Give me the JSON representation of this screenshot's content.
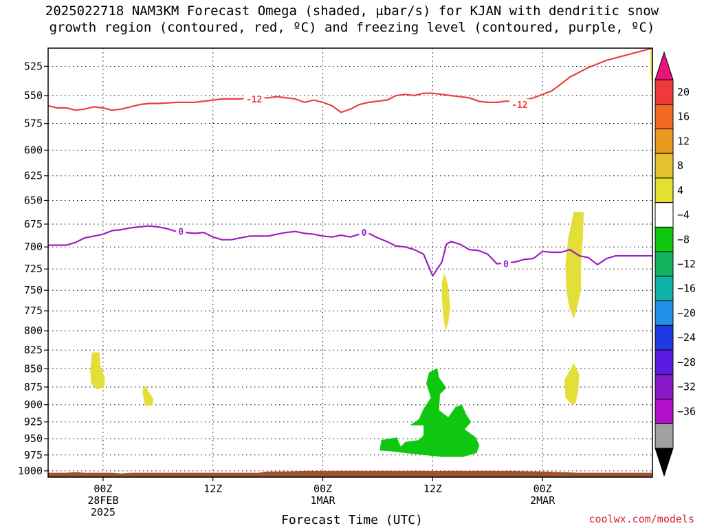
{
  "chart_data": {
    "type": "contour",
    "title_line1": "2025022718 NAM3KM Forecast Omega (shaded, μbar/s) for KJAN with dendritic snow",
    "title_line2": "growth region (contoured, red, ºC) and freezing level (contoured, purple, ºC)",
    "xlabel": "Forecast Time (UTC)",
    "credit": "coolwx.com/models",
    "x_hours_range": [
      -6,
      60
    ],
    "x_ticks": [
      {
        "hour": 0,
        "lines": [
          "00Z",
          "28FEB",
          "2025"
        ]
      },
      {
        "hour": 12,
        "lines": [
          "12Z"
        ]
      },
      {
        "hour": 24,
        "lines": [
          "00Z",
          "1MAR"
        ]
      },
      {
        "hour": 36,
        "lines": [
          "12Z"
        ]
      },
      {
        "hour": 48,
        "lines": [
          "00Z",
          "2MAR"
        ]
      }
    ],
    "y_ticks": [
      "525",
      "550",
      "575",
      "600",
      "625",
      "650",
      "675",
      "700",
      "725",
      "750",
      "775",
      "800",
      "825",
      "850",
      "875",
      "900",
      "925",
      "950",
      "975",
      "1000"
    ],
    "ylim": [
      510,
      1010
    ],
    "colorbar": {
      "labels": [
        "20",
        "16",
        "12",
        "8",
        "4",
        "−4",
        "−8",
        "−12",
        "−16",
        "−20",
        "−24",
        "−28",
        "−32",
        "−36"
      ],
      "colors": [
        "#e9137a",
        "#ee3a3a",
        "#f16b22",
        "#eb9a20",
        "#e4c22d",
        "#e3e032",
        "#ffffff",
        "#10c710",
        "#12b35f",
        "#10b3a9",
        "#1f8fe8",
        "#1f3ae0",
        "#5a1ce0",
        "#8b18c9",
        "#b20fc9",
        "#a0a0a0",
        "#000000"
      ]
    },
    "contours": [
      {
        "name": "-12",
        "color": "#ee3f3f",
        "labels": [
          {
            "hour": 16.5,
            "p": 553
          },
          {
            "hour": 45.5,
            "p": 558
          }
        ],
        "points": [
          [
            -6,
            559
          ],
          [
            -5,
            561
          ],
          [
            -4,
            561
          ],
          [
            -3,
            563
          ],
          [
            -2,
            562
          ],
          [
            -1,
            560
          ],
          [
            0,
            561
          ],
          [
            1,
            563
          ],
          [
            2,
            562
          ],
          [
            3,
            560
          ],
          [
            4,
            558
          ],
          [
            5,
            557
          ],
          [
            6,
            557
          ],
          [
            8,
            556
          ],
          [
            10,
            556
          ],
          [
            11,
            555
          ],
          [
            12,
            554
          ],
          [
            13,
            553
          ],
          [
            14,
            553
          ],
          [
            15,
            553
          ],
          [
            16,
            552
          ],
          [
            18,
            552
          ],
          [
            19,
            551
          ],
          [
            20,
            552
          ],
          [
            21,
            553
          ],
          [
            22,
            556
          ],
          [
            23,
            554
          ],
          [
            24,
            556
          ],
          [
            25,
            559
          ],
          [
            26,
            565
          ],
          [
            27,
            562
          ],
          [
            28,
            558
          ],
          [
            29,
            556
          ],
          [
            30,
            555
          ],
          [
            31,
            554
          ],
          [
            32,
            550
          ],
          [
            33,
            549
          ],
          [
            34,
            550
          ],
          [
            35,
            548
          ],
          [
            36,
            548
          ],
          [
            37,
            549
          ],
          [
            38,
            550
          ],
          [
            39,
            551
          ],
          [
            40,
            552
          ],
          [
            41,
            555
          ],
          [
            42,
            556
          ],
          [
            43,
            556
          ],
          [
            44,
            555
          ],
          [
            45,
            555
          ],
          [
            46,
            554
          ],
          [
            47,
            552
          ],
          [
            48,
            549
          ],
          [
            49,
            546
          ],
          [
            50,
            540
          ],
          [
            51,
            534
          ],
          [
            52,
            530
          ],
          [
            53,
            526
          ],
          [
            54,
            523
          ],
          [
            55,
            520
          ],
          [
            56,
            518
          ],
          [
            57,
            516
          ],
          [
            58,
            514
          ],
          [
            59,
            512
          ],
          [
            60,
            510
          ]
        ]
      },
      {
        "name": "0",
        "color": "#9b1fc8",
        "labels": [
          {
            "hour": 8.5,
            "p": 683
          },
          {
            "hour": 28.5,
            "p": 684
          },
          {
            "hour": 44,
            "p": 719
          }
        ],
        "points": [
          [
            -6,
            698
          ],
          [
            -4,
            698
          ],
          [
            -3,
            695
          ],
          [
            -2,
            690
          ],
          [
            -1,
            688
          ],
          [
            0,
            686
          ],
          [
            1,
            682
          ],
          [
            2,
            681
          ],
          [
            3,
            679
          ],
          [
            4,
            678
          ],
          [
            5,
            677
          ],
          [
            6,
            678
          ],
          [
            7,
            680
          ],
          [
            8,
            683
          ],
          [
            9,
            684
          ],
          [
            10,
            685
          ],
          [
            11,
            684
          ],
          [
            12,
            689
          ],
          [
            13,
            692
          ],
          [
            14,
            692
          ],
          [
            15,
            690
          ],
          [
            16,
            688
          ],
          [
            17,
            688
          ],
          [
            18,
            688
          ],
          [
            19,
            686
          ],
          [
            20,
            684
          ],
          [
            21,
            683
          ],
          [
            22,
            685
          ],
          [
            23,
            686
          ],
          [
            24,
            688
          ],
          [
            25,
            689
          ],
          [
            26,
            687
          ],
          [
            27,
            689
          ],
          [
            28,
            686
          ],
          [
            29,
            685
          ],
          [
            30,
            690
          ],
          [
            31,
            694
          ],
          [
            32,
            699
          ],
          [
            33,
            700
          ],
          [
            34,
            703
          ],
          [
            35,
            708
          ],
          [
            36,
            733
          ],
          [
            37,
            717
          ],
          [
            37.5,
            697
          ],
          [
            38,
            694
          ],
          [
            39,
            697
          ],
          [
            40,
            703
          ],
          [
            41,
            704
          ],
          [
            42,
            708
          ],
          [
            43,
            719
          ],
          [
            44,
            718
          ],
          [
            45,
            717
          ],
          [
            46,
            714
          ],
          [
            47,
            713
          ],
          [
            48,
            705
          ],
          [
            49,
            706
          ],
          [
            50,
            706
          ],
          [
            51,
            703
          ],
          [
            52,
            710
          ],
          [
            53,
            712
          ],
          [
            54,
            720
          ],
          [
            55,
            713
          ],
          [
            56,
            710
          ],
          [
            60,
            710
          ]
        ]
      }
    ],
    "shaded_regions": [
      {
        "name": "omega-pos-yellow-1",
        "level": "4 to 8",
        "color": "#e4de38",
        "points": [
          [
            -1.2,
            828
          ],
          [
            -0.4,
            828
          ],
          [
            -0.3,
            845
          ],
          [
            0.2,
            862
          ],
          [
            0.1,
            876
          ],
          [
            -0.7,
            878
          ],
          [
            -1.3,
            870
          ],
          [
            -1.4,
            852
          ]
        ]
      },
      {
        "name": "omega-pos-yellow-2",
        "level": "4 to 8",
        "color": "#e4de38",
        "points": [
          [
            4.6,
            873
          ],
          [
            5.0,
            882
          ],
          [
            5.5,
            892
          ],
          [
            5.4,
            900
          ],
          [
            4.6,
            902
          ],
          [
            4.4,
            890
          ],
          [
            4.3,
            880
          ]
        ]
      },
      {
        "name": "omega-pos-yellow-3",
        "level": "4 to 8",
        "color": "#e4de38",
        "points": [
          [
            37.3,
            730
          ],
          [
            37.7,
            745
          ],
          [
            37.9,
            770
          ],
          [
            37.7,
            790
          ],
          [
            37.4,
            800
          ],
          [
            37.2,
            785
          ],
          [
            37.0,
            760
          ],
          [
            37.0,
            740
          ]
        ]
      },
      {
        "name": "omega-pos-yellow-4",
        "level": "4 to 8",
        "color": "#e4de38",
        "points": [
          [
            51.4,
            662
          ],
          [
            52.5,
            662
          ],
          [
            52.4,
            690
          ],
          [
            52.2,
            720
          ],
          [
            52.2,
            750
          ],
          [
            51.8,
            770
          ],
          [
            51.4,
            785
          ],
          [
            50.9,
            770
          ],
          [
            50.6,
            750
          ],
          [
            50.5,
            720
          ],
          [
            50.8,
            690
          ]
        ]
      },
      {
        "name": "omega-pos-yellow-5",
        "level": "4 to 8",
        "color": "#e4de38",
        "points": [
          [
            51.4,
            842
          ],
          [
            52.0,
            858
          ],
          [
            51.9,
            880
          ],
          [
            51.6,
            898
          ],
          [
            51.2,
            900
          ],
          [
            50.5,
            890
          ],
          [
            50.4,
            865
          ]
        ]
      },
      {
        "name": "omega-pos-yellow-6",
        "level": "4 to 8",
        "color": "#e4de38",
        "points": [
          [
            59.8,
            510
          ],
          [
            60,
            510
          ],
          [
            60,
            545
          ],
          [
            59.8,
            530
          ]
        ]
      },
      {
        "name": "omega-neg-green-1",
        "level": "-4 to -8",
        "color": "#10c710",
        "points": [
          [
            32.5,
            962
          ],
          [
            33,
            955
          ],
          [
            34.5,
            952
          ],
          [
            35,
            945
          ],
          [
            35,
            930
          ],
          [
            33.5,
            930
          ],
          [
            34.5,
            921
          ],
          [
            35,
            906
          ],
          [
            35.8,
            890
          ],
          [
            35.3,
            870
          ],
          [
            35.6,
            855
          ],
          [
            36.5,
            849
          ],
          [
            36.7,
            862
          ],
          [
            37.5,
            876
          ],
          [
            36.8,
            885
          ],
          [
            36.7,
            908
          ],
          [
            37.7,
            918
          ],
          [
            38.5,
            903
          ],
          [
            39.2,
            900
          ],
          [
            39.7,
            915
          ],
          [
            40.2,
            925
          ],
          [
            39.5,
            936
          ],
          [
            40.7,
            948
          ],
          [
            41.1,
            960
          ],
          [
            40.8,
            972
          ],
          [
            39.3,
            978
          ],
          [
            37,
            978
          ],
          [
            35,
            975
          ],
          [
            33,
            972
          ],
          [
            32,
            970
          ],
          [
            30.2,
            968
          ],
          [
            30.4,
            952
          ],
          [
            32.1,
            948
          ]
        ]
      }
    ],
    "terrain": {
      "color": "#a0522d",
      "points": [
        [
          -6,
          1003
        ],
        [
          -4,
          1003
        ],
        [
          -3,
          1002
        ],
        [
          -2,
          1003
        ],
        [
          0,
          1003
        ],
        [
          1,
          1003
        ],
        [
          2,
          1004
        ],
        [
          3,
          1003
        ],
        [
          6,
          1003
        ],
        [
          10,
          1003
        ],
        [
          14,
          1003
        ],
        [
          17,
          1003
        ],
        [
          18,
          1001
        ],
        [
          20,
          1001
        ],
        [
          22,
          1000
        ],
        [
          24,
          1000
        ],
        [
          28,
          1000
        ],
        [
          32,
          1000
        ],
        [
          36,
          1000
        ],
        [
          40,
          1000
        ],
        [
          44,
          1000
        ],
        [
          48,
          1001
        ],
        [
          50,
          1002
        ],
        [
          52,
          1003
        ],
        [
          56,
          1003
        ],
        [
          60,
          1003
        ]
      ]
    }
  }
}
